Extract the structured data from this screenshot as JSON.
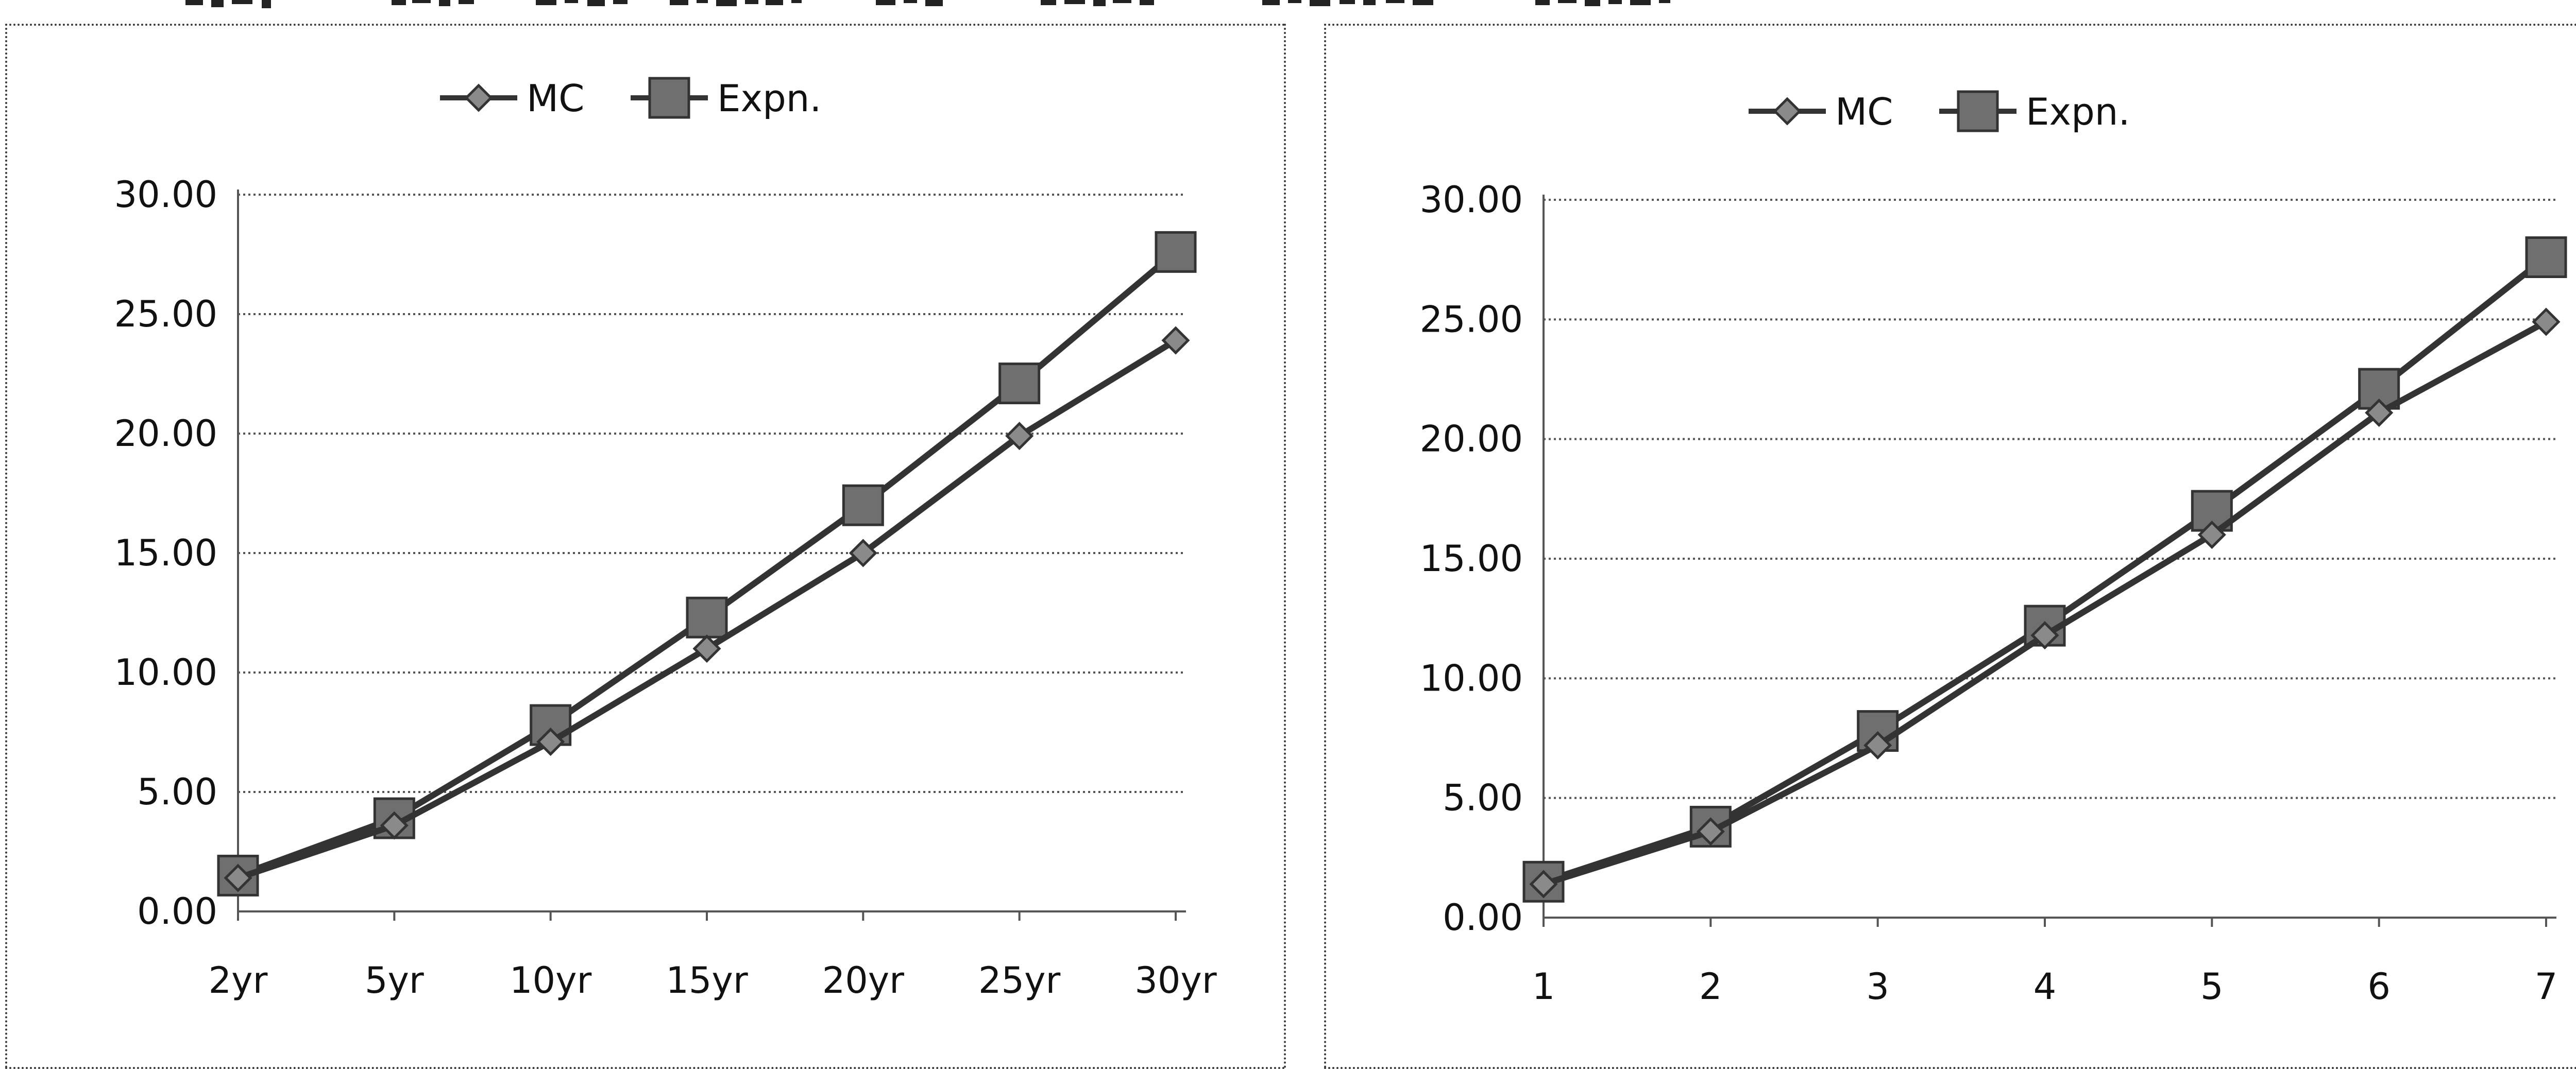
{
  "chart_data": [
    {
      "type": "line",
      "categories": [
        "2yr",
        "5yr",
        "10yr",
        "15yr",
        "20yr",
        "25yr",
        "30yr"
      ],
      "series": [
        {
          "name": "MC",
          "values": [
            1.4,
            3.6,
            7.1,
            11.0,
            15.0,
            19.9,
            23.9
          ],
          "color": "#333333",
          "marker": "diamond"
        },
        {
          "name": "Expn.",
          "values": [
            1.5,
            3.9,
            7.8,
            12.3,
            17.0,
            22.1,
            27.6
          ],
          "color": "#333333",
          "marker": "square"
        }
      ],
      "y_ticks": [
        "0.00",
        "5.00",
        "10.00",
        "15.00",
        "20.00",
        "25.00",
        "30.00"
      ],
      "ylim": [
        0,
        30
      ],
      "grid": "horizontal",
      "legend": "top-center"
    },
    {
      "type": "line",
      "categories": [
        "1",
        "2",
        "3",
        "4",
        "5",
        "6",
        "7"
      ],
      "series": [
        {
          "name": "MC",
          "values": [
            1.4,
            3.6,
            7.2,
            11.8,
            16.0,
            21.1,
            24.9
          ],
          "color": "#333333",
          "marker": "diamond"
        },
        {
          "name": "Expn.",
          "values": [
            1.5,
            3.8,
            7.8,
            12.2,
            17.0,
            22.1,
            27.6
          ],
          "color": "#333333",
          "marker": "square"
        }
      ],
      "y_ticks": [
        "0.00",
        "5.00",
        "10.00",
        "15.00",
        "20.00",
        "25.00",
        "30.00"
      ],
      "ylim": [
        0,
        30
      ],
      "grid": "horizontal",
      "legend": "top-center"
    }
  ]
}
